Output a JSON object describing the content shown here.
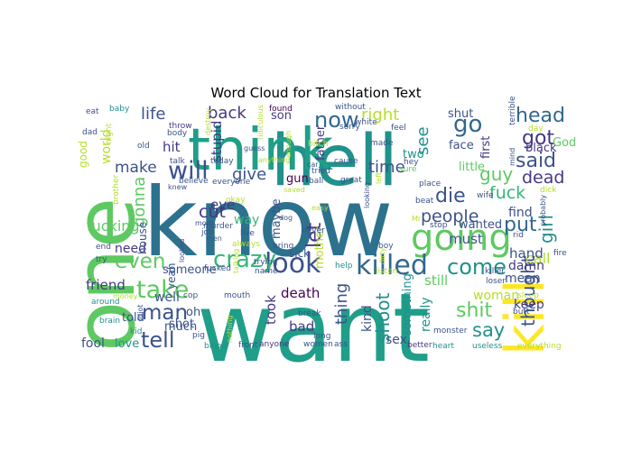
{
  "chart_data": {
    "type": "wordcloud",
    "title": "Word Cloud for Translation Text",
    "background": "#ffffff",
    "palette": [
      "#440154",
      "#3b528b",
      "#21918c",
      "#5ec962",
      "#fde725",
      "#31688e",
      "#35b779",
      "#1f9e89",
      "#443983",
      "#b5de2b"
    ],
    "words": [
      {
        "text": "know",
        "color": "#2c728e"
      },
      {
        "text": "want",
        "color": "#1f9e89"
      },
      {
        "text": "one",
        "color": "#5ec962"
      },
      {
        "text": "hell",
        "color": "#21918c"
      },
      {
        "text": "think",
        "color": "#1f9e89"
      },
      {
        "text": "kill",
        "color": "#fde725"
      },
      {
        "text": "going",
        "color": "#5ec962"
      },
      {
        "text": "look",
        "color": "#3b528b"
      },
      {
        "text": "killed",
        "color": "#31688e"
      },
      {
        "text": "will",
        "color": "#3b528b"
      },
      {
        "text": "take",
        "color": "#5ec962"
      },
      {
        "text": "crazy",
        "color": "#35b779"
      },
      {
        "text": "even",
        "color": "#5ec962"
      },
      {
        "text": "man",
        "color": "#3b528b"
      },
      {
        "text": "tell",
        "color": "#3b528b"
      },
      {
        "text": "now",
        "color": "#31688e"
      },
      {
        "text": "come",
        "color": "#21918c"
      },
      {
        "text": "go",
        "color": "#31688e"
      },
      {
        "text": "head",
        "color": "#31688e"
      },
      {
        "text": "got",
        "color": "#443983"
      },
      {
        "text": "said",
        "color": "#3b528b"
      },
      {
        "text": "put",
        "color": "#31688e"
      },
      {
        "text": "die",
        "color": "#3b528b"
      },
      {
        "text": "people",
        "color": "#3b528b"
      },
      {
        "text": "fuck",
        "color": "#35b779"
      },
      {
        "text": "dead",
        "color": "#443983"
      },
      {
        "text": "shit",
        "color": "#5ec962"
      },
      {
        "text": "say",
        "color": "#21918c"
      },
      {
        "text": "thought",
        "color": "#3b528b"
      },
      {
        "text": "girl",
        "color": "#21918c"
      },
      {
        "text": "life",
        "color": "#3b528b"
      },
      {
        "text": "back",
        "color": "#443983"
      },
      {
        "text": "right",
        "color": "#b5de2b"
      },
      {
        "text": "give",
        "color": "#3b528b"
      },
      {
        "text": "make",
        "color": "#3b528b"
      },
      {
        "text": "let",
        "color": "#443983"
      },
      {
        "text": "time",
        "color": "#3b528b"
      },
      {
        "text": "guy",
        "color": "#5ec962"
      },
      {
        "text": "see",
        "color": "#21918c"
      },
      {
        "text": "cut",
        "color": "#443983"
      },
      {
        "text": "gonna",
        "color": "#5ec962"
      },
      {
        "text": "thing",
        "color": "#3b528b"
      },
      {
        "text": "shoot",
        "color": "#21918c"
      },
      {
        "text": "fucking",
        "color": "#5ec962"
      },
      {
        "text": "friend",
        "color": "#443983"
      },
      {
        "text": "stupid",
        "color": "#443983"
      },
      {
        "text": "world",
        "color": "#b5de2b"
      },
      {
        "text": "hit",
        "color": "#443983"
      },
      {
        "text": "eye",
        "color": "#443983"
      },
      {
        "text": "way",
        "color": "#35b779"
      },
      {
        "text": "maybe",
        "color": "#3b528b"
      },
      {
        "text": "must",
        "color": "#3b528b"
      },
      {
        "text": "wanted",
        "color": "#3b528b"
      },
      {
        "text": "find",
        "color": "#3b528b"
      },
      {
        "text": "call",
        "color": "#b5de2b"
      },
      {
        "text": "still",
        "color": "#5ec962"
      },
      {
        "text": "hand",
        "color": "#3b528b"
      },
      {
        "text": "damn",
        "color": "#443983"
      },
      {
        "text": "mean",
        "color": "#3b528b"
      },
      {
        "text": "keep",
        "color": "#443983"
      },
      {
        "text": "woman",
        "color": "#b5de2b"
      },
      {
        "text": "kind",
        "color": "#3b528b"
      },
      {
        "text": "really",
        "color": "#21918c"
      },
      {
        "text": "sex",
        "color": "#3b528b"
      },
      {
        "text": "something",
        "color": "#21918c"
      },
      {
        "text": "death",
        "color": "#440154"
      },
      {
        "text": "took",
        "color": "#443983"
      },
      {
        "text": "bad",
        "color": "#443983"
      },
      {
        "text": "mother",
        "color": "#b5de2b"
      },
      {
        "text": "father",
        "color": "#443983"
      },
      {
        "text": "someone",
        "color": "#3b528b"
      },
      {
        "text": "told",
        "color": "#3b528b"
      },
      {
        "text": "much",
        "color": "#3b528b"
      },
      {
        "text": "shot",
        "color": "#3b528b"
      },
      {
        "text": "well",
        "color": "#3b528b"
      },
      {
        "text": "fool",
        "color": "#3b528b"
      },
      {
        "text": "love",
        "color": "#21918c"
      },
      {
        "text": "oh",
        "color": "#3b528b"
      },
      {
        "text": "need",
        "color": "#443983"
      },
      {
        "text": "house",
        "color": "#3b528b"
      },
      {
        "text": "yeah",
        "color": "#3b528b"
      },
      {
        "text": "son",
        "color": "#443983"
      },
      {
        "text": "gun",
        "color": "#440154"
      },
      {
        "text": "sick",
        "color": "#3b528b"
      },
      {
        "text": "black",
        "color": "#443983"
      },
      {
        "text": "first",
        "color": "#443983"
      },
      {
        "text": "face",
        "color": "#3b528b"
      },
      {
        "text": "shut",
        "color": "#3b528b"
      },
      {
        "text": "little",
        "color": "#5ec962"
      },
      {
        "text": "two",
        "color": "#21918c"
      },
      {
        "text": "God",
        "color": "#5ec962"
      },
      {
        "text": "good",
        "color": "#b5de2b"
      },
      {
        "text": "baby",
        "color": "#21918c"
      },
      {
        "text": "eat",
        "color": "#3b528b"
      },
      {
        "text": "dad",
        "color": "#3b528b"
      },
      {
        "text": "night",
        "color": "#b5de2b"
      },
      {
        "text": "old",
        "color": "#3b528b"
      },
      {
        "text": "body",
        "color": "#3b528b"
      },
      {
        "text": "throw",
        "color": "#443983"
      },
      {
        "text": "talk",
        "color": "#3b528b"
      },
      {
        "text": "today",
        "color": "#3b528b"
      },
      {
        "text": "ridiculous",
        "color": "#b5de2b"
      },
      {
        "text": "found",
        "color": "#440154"
      },
      {
        "text": "without",
        "color": "#3b528b"
      },
      {
        "text": "sorry",
        "color": "#3b528b"
      },
      {
        "text": "white",
        "color": "#3b528b"
      },
      {
        "text": "feel",
        "color": "#3b528b"
      },
      {
        "text": "made",
        "color": "#3b528b"
      },
      {
        "text": "hey",
        "color": "#3b528b"
      },
      {
        "text": "sure",
        "color": "#5ec962"
      },
      {
        "text": "day",
        "color": "#b5de2b"
      },
      {
        "text": "terrible",
        "color": "#3b528b"
      },
      {
        "text": "end",
        "color": "#3b528b"
      },
      {
        "text": "try",
        "color": "#3b528b"
      },
      {
        "text": "brain",
        "color": "#21918c"
      },
      {
        "text": "around",
        "color": "#21918c"
      },
      {
        "text": "money",
        "color": "#b5de2b"
      },
      {
        "text": "kid",
        "color": "#21918c"
      },
      {
        "text": "idiot",
        "color": "#3b528b"
      },
      {
        "text": "cop",
        "color": "#3b528b"
      },
      {
        "text": "pig",
        "color": "#3b528b"
      },
      {
        "text": "blood",
        "color": "#21918c"
      },
      {
        "text": "front",
        "color": "#3b528b"
      },
      {
        "text": "anyone",
        "color": "#443983"
      },
      {
        "text": "women",
        "color": "#3b528b"
      },
      {
        "text": "ass",
        "color": "#3b528b"
      },
      {
        "text": "better",
        "color": "#443983"
      },
      {
        "text": "heart",
        "color": "#21918c"
      },
      {
        "text": "useless",
        "color": "#21918c"
      },
      {
        "text": "everything",
        "color": "#b5de2b"
      },
      {
        "text": "monster",
        "color": "#3b528b"
      },
      {
        "text": "long",
        "color": "#3b528b"
      },
      {
        "text": "break",
        "color": "#3b528b"
      },
      {
        "text": "live",
        "color": "#3b528b"
      },
      {
        "text": "job",
        "color": "#3b528b"
      },
      {
        "text": "murder",
        "color": "#3b528b"
      },
      {
        "text": "men",
        "color": "#3b528b"
      },
      {
        "text": "mom",
        "color": "#3b528b"
      },
      {
        "text": "bring",
        "color": "#3b528b"
      },
      {
        "text": "trying",
        "color": "#3b528b"
      },
      {
        "text": "name",
        "color": "#3b528b"
      },
      {
        "text": "fucked",
        "color": "#3b528b"
      },
      {
        "text": "always",
        "color": "#b5de2b"
      },
      {
        "text": "never",
        "color": "#3b528b"
      },
      {
        "text": "help",
        "color": "#21918c"
      },
      {
        "text": "listen",
        "color": "#b5de2b"
      },
      {
        "text": "killer",
        "color": "#3b528b"
      },
      {
        "text": "sleep",
        "color": "#b5de2b"
      },
      {
        "text": "butt",
        "color": "#3b528b"
      },
      {
        "text": "fire",
        "color": "#3b528b"
      },
      {
        "text": "rid",
        "color": "#3b528b"
      },
      {
        "text": "boy",
        "color": "#3b528b"
      },
      {
        "text": "stop",
        "color": "#3b528b"
      },
      {
        "text": "beat",
        "color": "#3b528b"
      },
      {
        "text": "place",
        "color": "#3b528b"
      },
      {
        "text": "wife",
        "color": "#3b528b"
      },
      {
        "text": "dick",
        "color": "#b5de2b"
      },
      {
        "text": "probably",
        "color": "#3b528b"
      },
      {
        "text": "ball",
        "color": "#3b528b"
      },
      {
        "text": "great",
        "color": "#3b528b"
      },
      {
        "text": "tried",
        "color": "#3b528b"
      },
      {
        "text": "car",
        "color": "#3b528b"
      },
      {
        "text": "cause",
        "color": "#3b528b"
      },
      {
        "text": "bitch",
        "color": "#b5de2b"
      },
      {
        "text": "everyone",
        "color": "#3b528b"
      },
      {
        "text": "believe",
        "color": "#3b528b"
      },
      {
        "text": "knew",
        "color": "#3b528b"
      },
      {
        "text": "brother",
        "color": "#b5de2b"
      },
      {
        "text": "looked",
        "color": "#3b528b"
      },
      {
        "text": "talking",
        "color": "#b5de2b"
      },
      {
        "text": "mouth",
        "color": "#3b528b"
      },
      {
        "text": "dirty",
        "color": "#b5de2b"
      },
      {
        "text": "mind",
        "color": "#3b528b"
      },
      {
        "text": "loser",
        "color": "#3b528b"
      },
      {
        "text": "left",
        "color": "#b5de2b"
      },
      {
        "text": "looking",
        "color": "#3b528b"
      },
      {
        "text": "anything",
        "color": "#b5de2b"
      },
      {
        "text": "nothing",
        "color": "#b5de2b"
      },
      {
        "text": "enough",
        "color": "#b5de2b"
      },
      {
        "text": "destroy",
        "color": "#b5de2b"
      },
      {
        "text": "okay",
        "color": "#b5de2b"
      },
      {
        "text": "dog",
        "color": "#3b528b"
      },
      {
        "text": "Mr",
        "color": "#b5de2b"
      },
      {
        "text": "saved",
        "color": "#b5de2b"
      },
      {
        "text": "easy",
        "color": "#b5de2b"
      },
      {
        "text": "guess",
        "color": "#3b528b"
      }
    ]
  }
}
